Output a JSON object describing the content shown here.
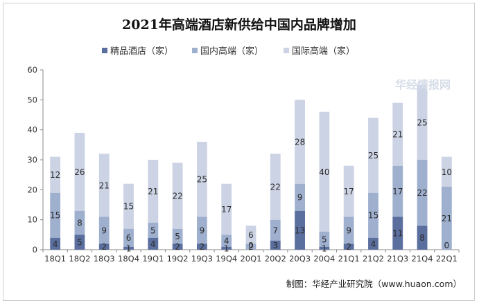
{
  "chart_data": {
    "type": "bar",
    "stacked": true,
    "title": "2021年高端酒店新供给中国内品牌增加",
    "categories": [
      "18Q1",
      "18Q2",
      "18Q3",
      "18Q4",
      "19Q1",
      "19Q2",
      "19Q3",
      "19Q4",
      "20Q1",
      "20Q2",
      "20Q3",
      "20Q4",
      "21Q1",
      "21Q2",
      "21Q3",
      "21Q4",
      "22Q1"
    ],
    "series": [
      {
        "name": "精品酒店（家）",
        "color": "#5b6f9e",
        "values": [
          4,
          5,
          2,
          1,
          4,
          2,
          2,
          1,
          0,
          3,
          13,
          1,
          2,
          4,
          11,
          8,
          0
        ]
      },
      {
        "name": "国内高端（家）",
        "color": "#9fb0cf",
        "values": [
          15,
          8,
          9,
          6,
          5,
          5,
          9,
          4,
          2,
          7,
          9,
          5,
          9,
          15,
          17,
          22,
          21
        ]
      },
      {
        "name": "国际高端（家）",
        "color": "#ccd3e4",
        "values": [
          12,
          26,
          21,
          15,
          21,
          22,
          25,
          17,
          6,
          22,
          28,
          40,
          17,
          25,
          21,
          25,
          10
        ]
      }
    ],
    "ylim": [
      0,
      60
    ],
    "yticks": [
      0,
      10,
      20,
      30,
      40,
      50,
      60
    ],
    "grid": false,
    "legend_position": "top",
    "source": "制图：华经产业研究院（www.huaon.com）",
    "watermark": "华经情报网"
  }
}
